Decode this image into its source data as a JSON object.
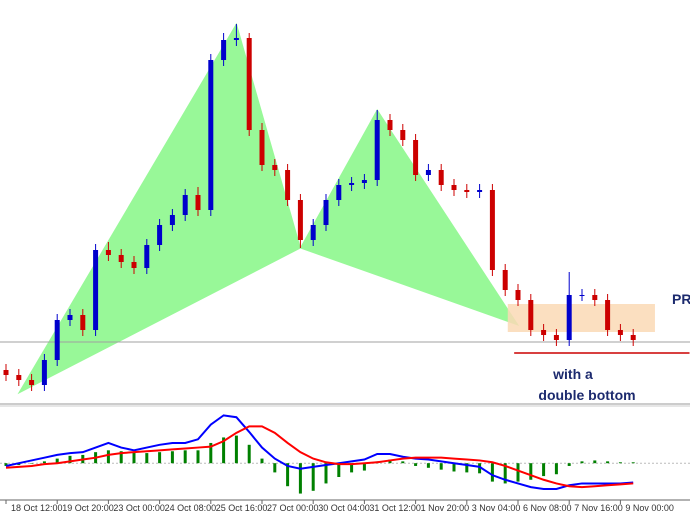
{
  "chart_data": {
    "type": "candlestick",
    "up_color": "#0000cc",
    "down_color": "#cc0000",
    "ylim": [
      0,
      405
    ],
    "categories": [
      "18 Oct 12:00",
      null,
      null,
      null,
      "19 Oct 20:00",
      null,
      null,
      null,
      "23 Oct 00:00",
      null,
      null,
      null,
      "24 Oct 08:00",
      null,
      null,
      null,
      "25 Oct 16:00",
      null,
      null,
      null,
      "27 Oct 00:00",
      null,
      null,
      null,
      "30 Oct 04:00",
      null,
      null,
      null,
      "31 Oct 12:00",
      null,
      null,
      null,
      "1 Nov 20:00",
      null,
      null,
      null,
      "3 Nov 04:00",
      null,
      null,
      null,
      "6 Nov 08:00",
      null,
      null,
      null,
      "7 Nov 16:00",
      null,
      null,
      null,
      "9 Nov 00:00",
      null
    ],
    "open": [
      35,
      30,
      25,
      20,
      45,
      85,
      90,
      75,
      155,
      150,
      143,
      137,
      160,
      180,
      190,
      210,
      195,
      345,
      365,
      367,
      275,
      240,
      235,
      205,
      165,
      180,
      205,
      220,
      222,
      225,
      285,
      275,
      265,
      230,
      235,
      220,
      215,
      213,
      215,
      135,
      115,
      105,
      75,
      70,
      65,
      110,
      110,
      105,
      75,
      70
    ],
    "high": [
      41,
      36,
      31,
      51,
      91,
      96,
      96,
      161,
      163,
      156,
      149,
      166,
      186,
      196,
      216,
      218,
      351,
      372,
      381,
      372,
      282,
      246,
      241,
      211,
      186,
      211,
      226,
      228,
      231,
      295,
      291,
      281,
      271,
      241,
      241,
      226,
      221,
      221,
      221,
      141,
      121,
      111,
      81,
      76,
      133,
      116,
      116,
      111,
      81,
      76
    ],
    "low": [
      24,
      19,
      14,
      14,
      39,
      79,
      69,
      69,
      144,
      137,
      131,
      131,
      154,
      174,
      184,
      189,
      189,
      339,
      359,
      269,
      234,
      229,
      199,
      157,
      159,
      174,
      199,
      214,
      216,
      219,
      269,
      259,
      224,
      224,
      214,
      209,
      207,
      207,
      129,
      109,
      99,
      69,
      64,
      59,
      59,
      104,
      99,
      69,
      64,
      59
    ],
    "close": [
      30,
      25,
      20,
      45,
      85,
      90,
      75,
      155,
      150,
      143,
      137,
      160,
      180,
      190,
      210,
      195,
      345,
      365,
      367,
      275,
      240,
      235,
      205,
      165,
      180,
      205,
      220,
      222,
      225,
      285,
      275,
      265,
      230,
      235,
      220,
      215,
      213,
      215,
      135,
      115,
      105,
      75,
      70,
      65,
      110,
      110,
      105,
      75,
      70,
      65
    ],
    "pattern_color": "#98f898",
    "pattern_points": [
      {
        "x": 1,
        "y": 12
      },
      {
        "x": 18,
        "y": 381
      },
      {
        "x": 23,
        "y": 157
      },
      {
        "x": 29,
        "y": 295
      },
      {
        "x": 40,
        "y": 80
      }
    ],
    "prz": {
      "x": [
        39.2,
        50.7
      ],
      "y": [
        73,
        101
      ],
      "color": "#fad9b5"
    },
    "support_line": {
      "y": 52,
      "x": [
        39.7,
        53.4
      ],
      "color": "#cc0000"
    },
    "reference_line": {
      "y": 63,
      "color": "#a0a0a0"
    },
    "annotations": [
      "PR",
      "with a",
      "double bottom"
    ],
    "macd": {
      "ylim": [
        -40,
        60
      ],
      "histogram": {
        "color": "#008000",
        "values": [
          -3,
          -2,
          0,
          2,
          5,
          8,
          9,
          12,
          14,
          13,
          12,
          11,
          12,
          13,
          14,
          14,
          22,
          28,
          30,
          20,
          5,
          -10,
          -25,
          -33,
          -30,
          -22,
          -15,
          -10,
          -8,
          2,
          4,
          2,
          -3,
          -5,
          -7,
          -9,
          -10,
          -11,
          -20,
          -22,
          -20,
          -18,
          -14,
          -12,
          -3,
          2,
          3,
          2,
          1,
          1
        ]
      },
      "macd_line": {
        "color": "#0000ff",
        "values": [
          -3,
          0,
          3,
          6,
          9,
          11,
          12,
          17,
          22,
          17,
          14,
          17,
          20,
          22,
          22,
          26,
          42,
          52,
          50,
          34,
          17,
          5,
          -3,
          -6,
          -4,
          -2,
          0,
          2,
          4,
          10,
          10,
          7,
          5,
          4,
          2,
          0,
          -2,
          -4,
          -13,
          -18,
          -22,
          -26,
          -28,
          -28,
          -24,
          -22,
          -22,
          -22,
          -22,
          -21
        ]
      },
      "signal_line": {
        "color": "#ff0000",
        "values": [
          -5,
          -4,
          -3,
          -1,
          0,
          2,
          4,
          6,
          9,
          11,
          12,
          13,
          14,
          15,
          16,
          17,
          18,
          24,
          33,
          40,
          40,
          33,
          22,
          12,
          5,
          1,
          -1,
          -1,
          0,
          1,
          3,
          5,
          6,
          6,
          6,
          5,
          4,
          3,
          1,
          -3,
          -8,
          -13,
          -18,
          -22,
          -25,
          -26,
          -25,
          -24,
          -23,
          -22
        ]
      }
    }
  }
}
